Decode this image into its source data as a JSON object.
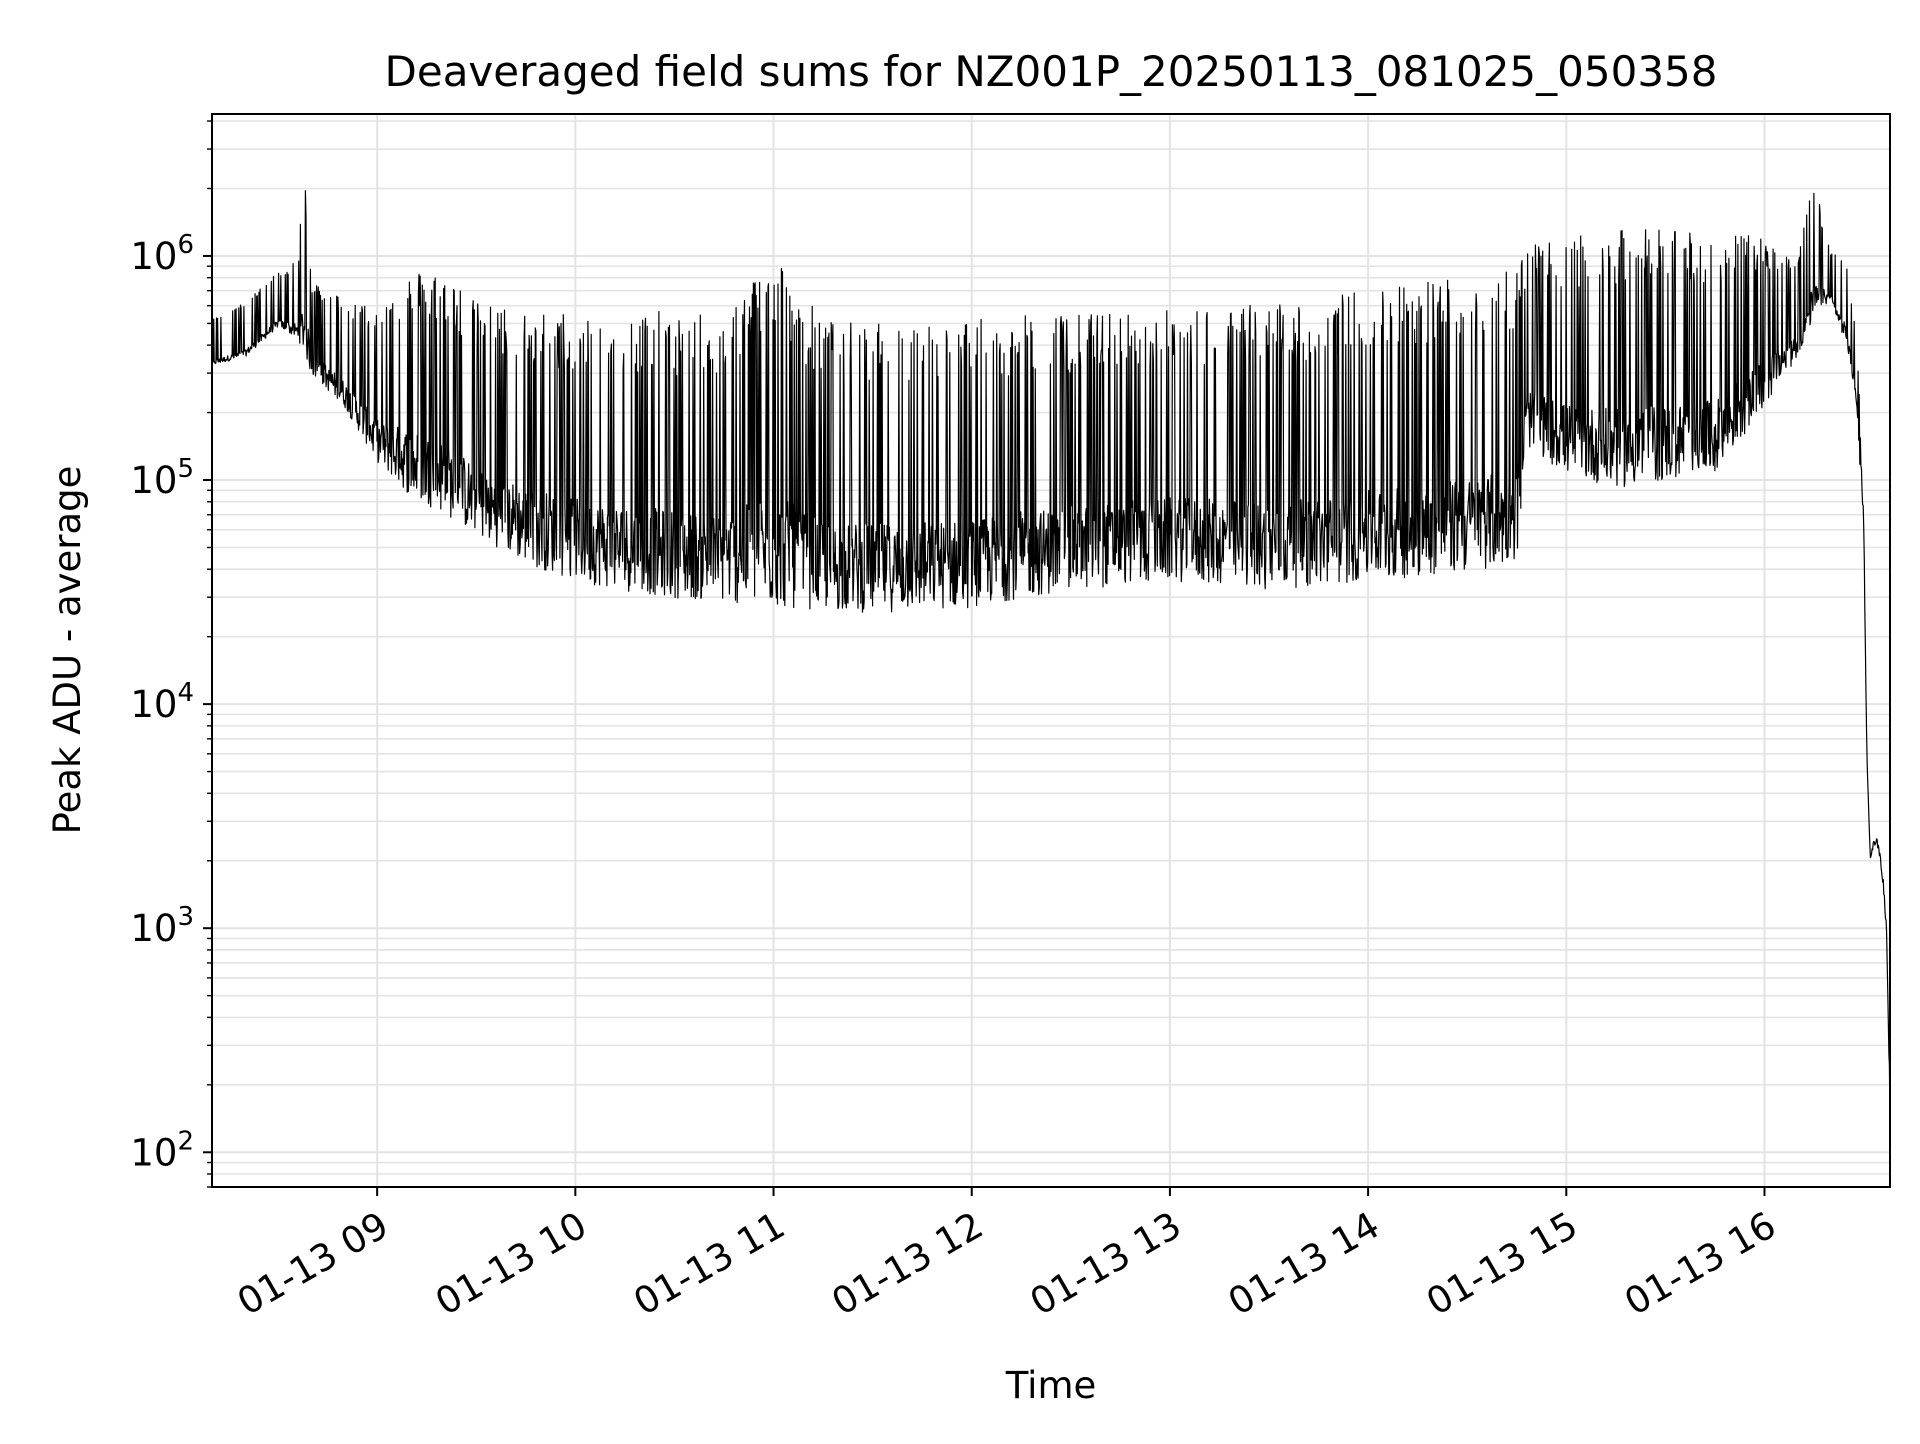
{
  "chart_data": {
    "type": "line",
    "title": "Deaveraged field sums for NZ001P_20250113_081025_050358",
    "xlabel": "Time",
    "ylabel": "Peak ADU - average",
    "xscale": "time",
    "yscale": "log",
    "grid": true,
    "legend": "none",
    "xlim": [
      "2025-01-13 08:10",
      "2025-01-13 16:38"
    ],
    "ylim": [
      70,
      4300000
    ],
    "x_ticks": [
      {
        "t": "2025-01-13 09:00",
        "label": "01-13 09"
      },
      {
        "t": "2025-01-13 10:00",
        "label": "01-13 10"
      },
      {
        "t": "2025-01-13 11:00",
        "label": "01-13 11"
      },
      {
        "t": "2025-01-13 12:00",
        "label": "01-13 12"
      },
      {
        "t": "2025-01-13 13:00",
        "label": "01-13 13"
      },
      {
        "t": "2025-01-13 14:00",
        "label": "01-13 14"
      },
      {
        "t": "2025-01-13 15:00",
        "label": "01-13 15"
      },
      {
        "t": "2025-01-13 16:00",
        "label": "01-13 16"
      }
    ],
    "y_ticks": [
      {
        "value": 100,
        "base": "10",
        "exp": "2"
      },
      {
        "value": 1000,
        "base": "10",
        "exp": "3"
      },
      {
        "value": 10000,
        "base": "10",
        "exp": "4"
      },
      {
        "value": 100000,
        "base": "10",
        "exp": "5"
      },
      {
        "value": 1000000,
        "base": "10",
        "exp": "6"
      }
    ],
    "line_color": "#000000",
    "series": [
      {
        "x": [
          "08:10",
          "08:20",
          "08:30",
          "08:36",
          "08:38",
          "08:40",
          "08:50",
          "09:00",
          "09:10",
          "09:20",
          "09:30",
          "09:45",
          "10:00",
          "10:15",
          "10:30",
          "10:45",
          "11:00",
          "11:15",
          "11:30",
          "11:45",
          "12:00",
          "12:15",
          "12:30",
          "12:45",
          "13:00",
          "13:15",
          "13:30",
          "13:45",
          "14:00",
          "14:15",
          "14:30",
          "14:45",
          "14:48",
          "15:00",
          "15:15",
          "15:30",
          "15:45",
          "16:00",
          "16:10",
          "16:15",
          "16:20",
          "16:25",
          "16:28",
          "16:30",
          "16:31",
          "16:32",
          "16:33",
          "16:34",
          "16:35",
          "16:36",
          "16:37",
          "16:38"
        ],
        "baseline": [
          460000,
          500000,
          680000,
          600000,
          520000,
          420000,
          300000,
          170000,
          120000,
          100000,
          80000,
          60000,
          50000,
          45000,
          42000,
          40000,
          38000,
          37000,
          36000,
          37000,
          38000,
          42000,
          45000,
          48000,
          50000,
          48000,
          46000,
          47000,
          50000,
          52000,
          55000,
          60000,
          200000,
          150000,
          130000,
          140000,
          150000,
          300000,
          500000,
          750000,
          900000,
          550000,
          300000,
          60000,
          6000,
          2000,
          2300,
          2400,
          2000,
          1500,
          900,
          130
        ],
        "peak": [
          520000,
          620000,
          850000,
          950000,
          2600000,
          800000,
          650000,
          600000,
          850000,
          900000,
          620000,
          580000,
          560000,
          580000,
          560000,
          540000,
          1100000,
          520000,
          500000,
          510000,
          520000,
          540000,
          560000,
          560000,
          580000,
          600000,
          620000,
          650000,
          720000,
          800000,
          850000,
          950000,
          1100000,
          1200000,
          1300000,
          1350000,
          1300000,
          1200000,
          1000000,
          2200000,
          1050000,
          1000000,
          400000,
          100000,
          6000,
          2300,
          2600,
          2700,
          2300,
          1800,
          1100,
          300
        ]
      }
    ]
  }
}
